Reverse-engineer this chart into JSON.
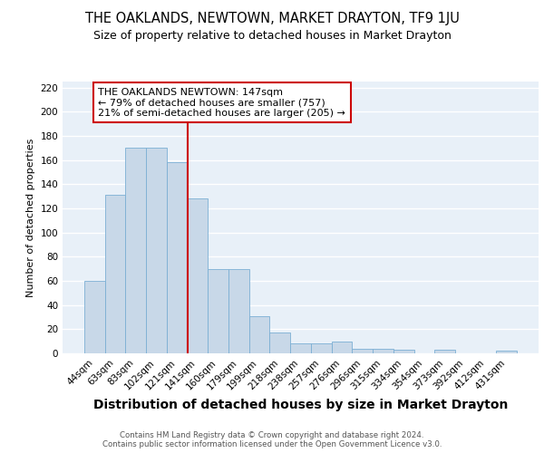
{
  "title": "THE OAKLANDS, NEWTOWN, MARKET DRAYTON, TF9 1JU",
  "subtitle": "Size of property relative to detached houses in Market Drayton",
  "xlabel": "Distribution of detached houses by size in Market Drayton",
  "ylabel": "Number of detached properties",
  "footer1": "Contains HM Land Registry data © Crown copyright and database right 2024.",
  "footer2": "Contains public sector information licensed under the Open Government Licence v3.0.",
  "categories": [
    "44sqm",
    "63sqm",
    "83sqm",
    "102sqm",
    "121sqm",
    "141sqm",
    "160sqm",
    "179sqm",
    "199sqm",
    "218sqm",
    "238sqm",
    "257sqm",
    "276sqm",
    "296sqm",
    "315sqm",
    "334sqm",
    "354sqm",
    "373sqm",
    "392sqm",
    "412sqm",
    "431sqm"
  ],
  "values": [
    60,
    131,
    170,
    170,
    158,
    128,
    70,
    70,
    31,
    17,
    8,
    8,
    10,
    4,
    4,
    3,
    0,
    3,
    0,
    0,
    2
  ],
  "bar_color": "#c8d8e8",
  "bar_edgecolor": "#7bafd4",
  "vline_x": 4.5,
  "highlight_label": "THE OAKLANDS NEWTOWN: 147sqm",
  "annotation_line1": "← 79% of detached houses are smaller (757)",
  "annotation_line2": "21% of semi-detached houses are larger (205) →",
  "vline_color": "#cc0000",
  "annotation_box_edgecolor": "#cc0000",
  "ylim": [
    0,
    225
  ],
  "yticks": [
    0,
    20,
    40,
    60,
    80,
    100,
    120,
    140,
    160,
    180,
    200,
    220
  ],
  "background_color": "#e8f0f8",
  "grid_color": "#ffffff",
  "title_fontsize": 10.5,
  "subtitle_fontsize": 9,
  "xlabel_fontsize": 10,
  "ylabel_fontsize": 8,
  "tick_fontsize": 7.5,
  "annotation_fontsize": 8
}
